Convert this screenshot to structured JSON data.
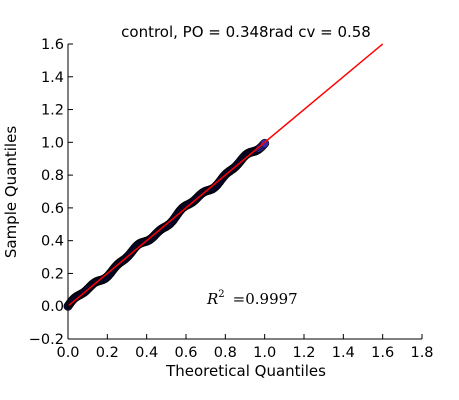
{
  "chart_data": {
    "type": "scatter",
    "title": "control, PO = 0.348rad cv = 0.58",
    "xlabel": "Theoretical Quantiles",
    "ylabel": "Sample Quantiles",
    "xlim": [
      0.0,
      1.8
    ],
    "ylim": [
      -0.2,
      1.6
    ],
    "xticks": [
      "0.0",
      "0.2",
      "0.4",
      "0.6",
      "0.8",
      "1.0",
      "1.2",
      "1.4",
      "1.6",
      "1.8"
    ],
    "yticks": [
      "−0.2",
      "0.0",
      "0.2",
      "0.4",
      "0.6",
      "0.8",
      "1.0",
      "1.2",
      "1.4",
      "1.6"
    ],
    "grid": false,
    "series": [
      {
        "kind": "points",
        "color": "#0a0a3a",
        "end_color": "#3a2aa8",
        "x_range": [
          0.0,
          1.0
        ],
        "y_range": [
          0.0,
          1.0
        ]
      },
      {
        "kind": "line",
        "color": "#ff0000",
        "x": [
          0.0,
          1.6
        ],
        "y": [
          0.0,
          1.6
        ]
      }
    ],
    "annotation": {
      "symbol": "R",
      "superscript": "2",
      "text": "=0.9997"
    }
  }
}
